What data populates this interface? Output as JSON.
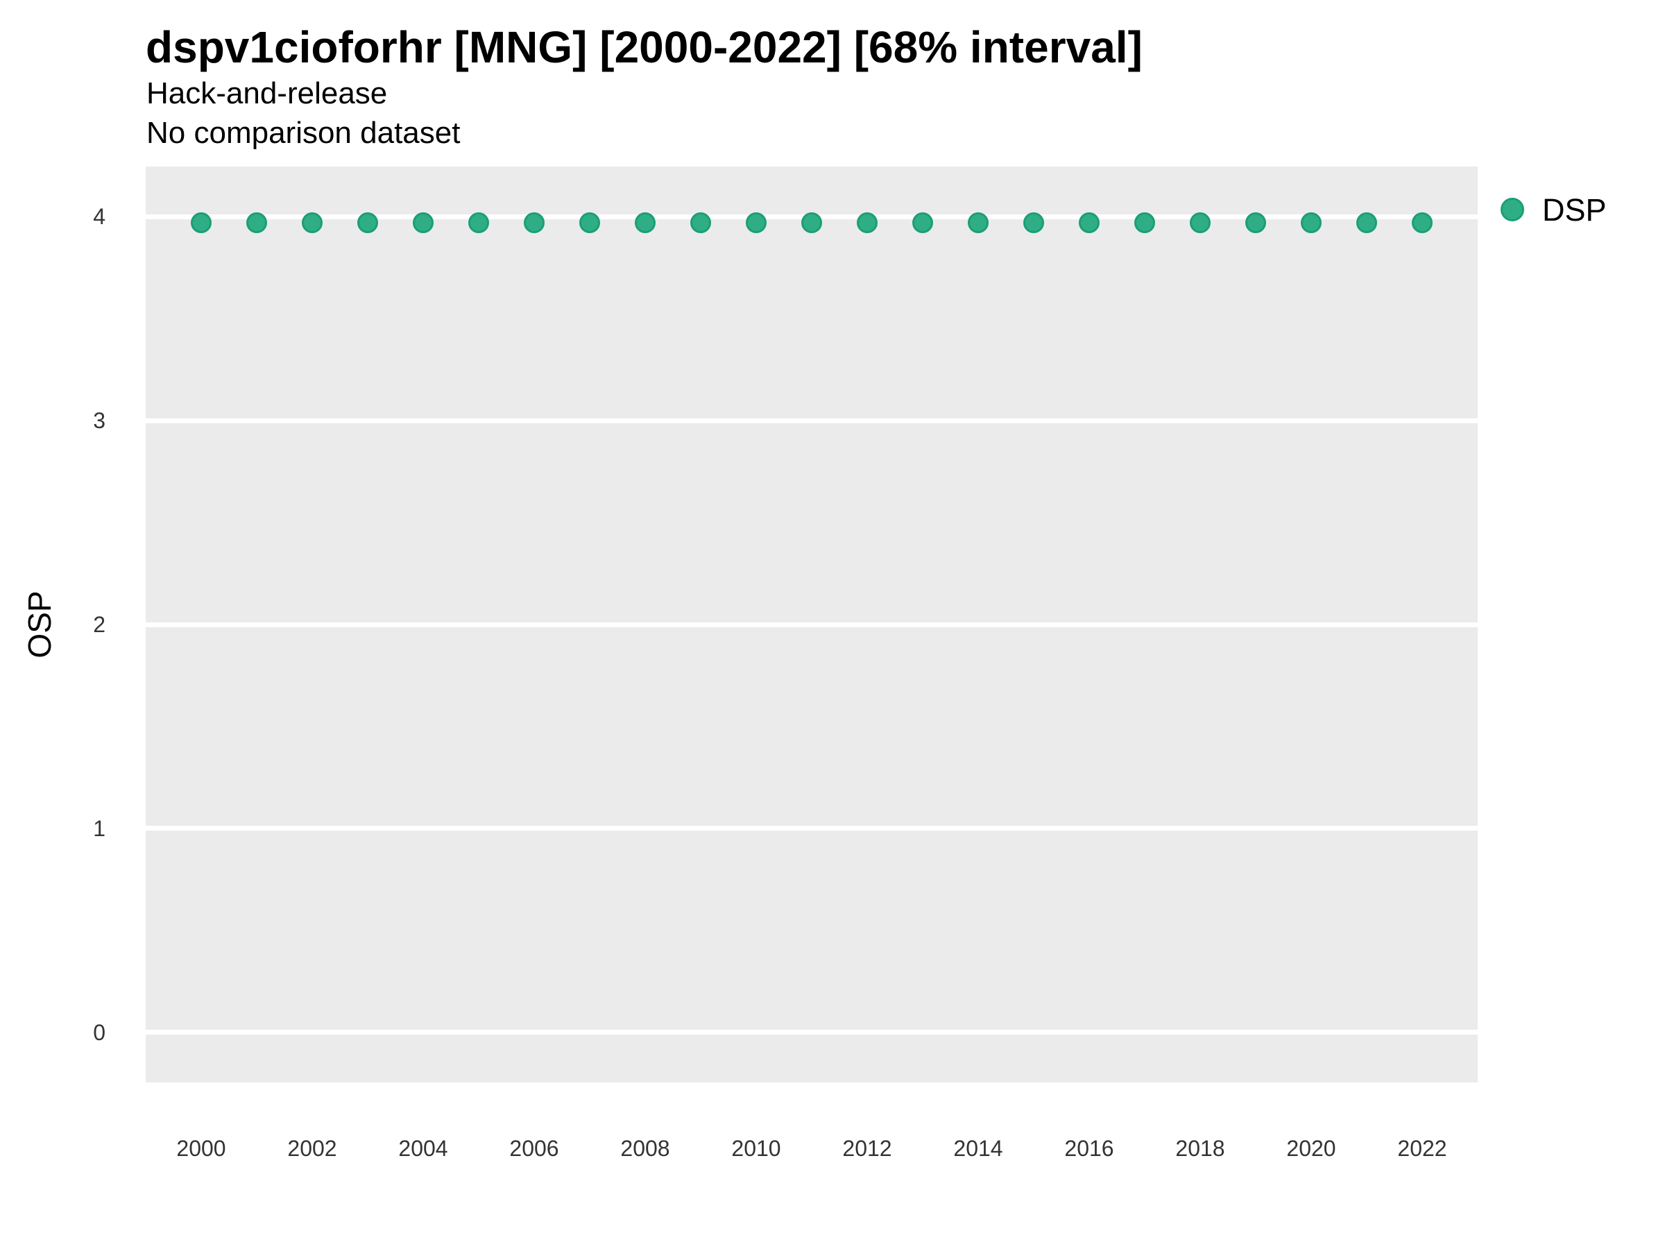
{
  "header": {
    "title": "dspv1cioforhr [MNG] [2000-2022] [68% interval]",
    "subtitle_line1": "Hack-and-release",
    "subtitle_line2": "No comparison dataset"
  },
  "legend": {
    "items": [
      {
        "label": "DSP",
        "fill": "#2FAE85",
        "stroke": "#1B9E77"
      }
    ]
  },
  "colors": {
    "panel_bg": "#EBEBEB",
    "gridline": "#FFFFFF",
    "title_text": "#000000",
    "tick_text": "#333333",
    "point_fill": "#2FAE85",
    "point_stroke": "#1B9E77"
  },
  "chart_data": {
    "type": "scatter",
    "title": "dspv1cioforhr [MNG] [2000-2022] [68% interval]",
    "subtitle": "Hack-and-release / No comparison dataset",
    "xlabel": "",
    "ylabel": "OSP",
    "xlim": [
      1999,
      2023
    ],
    "ylim": [
      -0.245,
      4.245
    ],
    "x_ticks": [
      2000,
      2002,
      2004,
      2006,
      2008,
      2010,
      2012,
      2014,
      2016,
      2018,
      2020,
      2022
    ],
    "y_ticks": [
      0,
      1,
      2,
      3,
      4
    ],
    "grid": "horizontal-major-only",
    "legend_position": "right-top",
    "series": [
      {
        "name": "DSP",
        "x": [
          2000,
          2001,
          2002,
          2003,
          2004,
          2005,
          2006,
          2007,
          2008,
          2009,
          2010,
          2011,
          2012,
          2013,
          2014,
          2015,
          2016,
          2017,
          2018,
          2019,
          2020,
          2021,
          2022
        ],
        "y": [
          3.97,
          3.97,
          3.97,
          3.97,
          3.97,
          3.97,
          3.97,
          3.97,
          3.97,
          3.97,
          3.97,
          3.97,
          3.97,
          3.97,
          3.97,
          3.97,
          3.97,
          3.97,
          3.97,
          3.97,
          3.97,
          3.97,
          3.97
        ]
      }
    ]
  }
}
